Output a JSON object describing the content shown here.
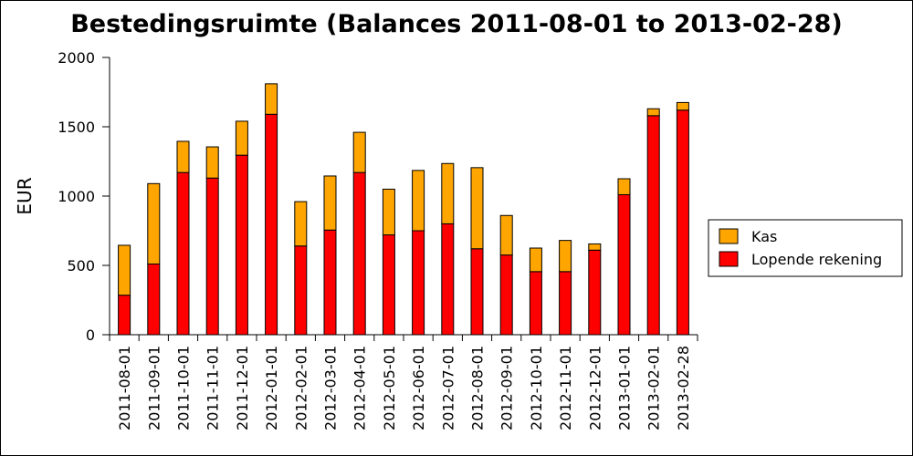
{
  "chart_data": {
    "type": "bar",
    "stacked": true,
    "title": "Bestedingsruimte (Balances 2011-08-01 to 2013-02-28)",
    "xlabel": "",
    "ylabel": "EUR",
    "ylim": [
      0,
      2000
    ],
    "yticks": [
      0,
      500,
      1000,
      1500,
      2000
    ],
    "categories": [
      "2011-08-01",
      "2011-09-01",
      "2011-10-01",
      "2011-11-01",
      "2011-12-01",
      "2012-01-01",
      "2012-02-01",
      "2012-03-01",
      "2012-04-01",
      "2012-05-01",
      "2012-06-01",
      "2012-07-01",
      "2012-08-01",
      "2012-09-01",
      "2012-10-01",
      "2012-11-01",
      "2012-12-01",
      "2013-01-01",
      "2013-02-01",
      "2013-02-28"
    ],
    "series": [
      {
        "name": "Lopende rekening",
        "color": "#ff0000",
        "values": [
          285,
          510,
          1170,
          1130,
          1295,
          1590,
          640,
          755,
          1170,
          720,
          750,
          800,
          620,
          575,
          455,
          455,
          610,
          1010,
          1580,
          1620
        ]
      },
      {
        "name": "Kas",
        "color": "#ffa500",
        "values": [
          360,
          580,
          225,
          225,
          245,
          220,
          320,
          390,
          290,
          330,
          435,
          435,
          585,
          285,
          170,
          225,
          45,
          115,
          50,
          55
        ]
      }
    ],
    "legend": {
      "position": "right",
      "order": [
        "Kas",
        "Lopende rekening"
      ]
    },
    "grid": false
  }
}
